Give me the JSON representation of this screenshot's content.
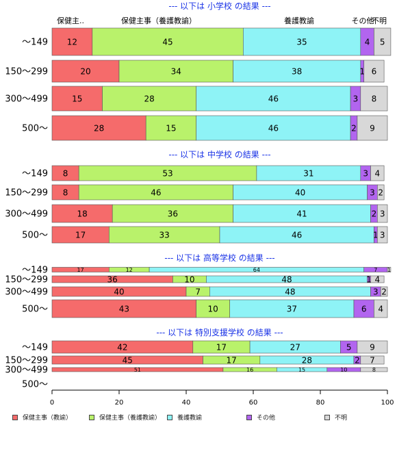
{
  "chart_data": {
    "type": "bar",
    "orientation": "horizontal",
    "stacked": true,
    "xlim": [
      0,
      100
    ],
    "xticks": [
      0,
      20,
      40,
      60,
      80,
      100
    ],
    "grid": false,
    "legend_position": "bottom",
    "category_header": [
      "保健主..",
      "保健主事（養護教諭）",
      "養護教諭",
      "その他",
      "不明"
    ],
    "categories": [
      "〜149",
      "150〜299",
      "300〜499",
      "500〜"
    ],
    "series": [
      {
        "name": "保健主事（教諭）",
        "color": "#f56b6b"
      },
      {
        "name": "保健主事（養護教諭）",
        "color": "#b9f26b"
      },
      {
        "name": "養護教諭",
        "color": "#8ef3f6"
      },
      {
        "name": "その他",
        "color": "#b265ef"
      },
      {
        "name": "不明",
        "color": "#d8d8d8"
      }
    ],
    "panels": [
      {
        "title": "--- 以下は 小学校 の結果 ---",
        "rows": [
          [
            12,
            45,
            35,
            4,
            5
          ],
          [
            20,
            34,
            38,
            1,
            6
          ],
          [
            15,
            28,
            46,
            3,
            8
          ],
          [
            28,
            15,
            46,
            2,
            9
          ]
        ]
      },
      {
        "title": "--- 以下は 中学校 の結果 ---",
        "rows": [
          [
            8,
            53,
            31,
            3,
            4
          ],
          [
            8,
            46,
            40,
            3,
            2
          ],
          [
            18,
            36,
            41,
            2,
            3
          ],
          [
            17,
            33,
            46,
            1,
            3
          ]
        ]
      },
      {
        "title": "--- 以下は 高等学校 の結果 ---",
        "rows": [
          [
            17,
            12,
            64,
            7,
            1
          ],
          [
            36,
            10,
            48,
            1,
            4
          ],
          [
            40,
            7,
            48,
            3,
            2
          ],
          [
            43,
            10,
            37,
            6,
            4
          ]
        ]
      },
      {
        "title": "--- 以下は 特別支援学校 の結果 ---",
        "rows": [
          [
            42,
            17,
            27,
            5,
            9
          ],
          [
            45,
            17,
            28,
            2,
            7
          ],
          [
            51,
            16,
            15,
            10,
            8
          ],
          null
        ]
      }
    ]
  }
}
